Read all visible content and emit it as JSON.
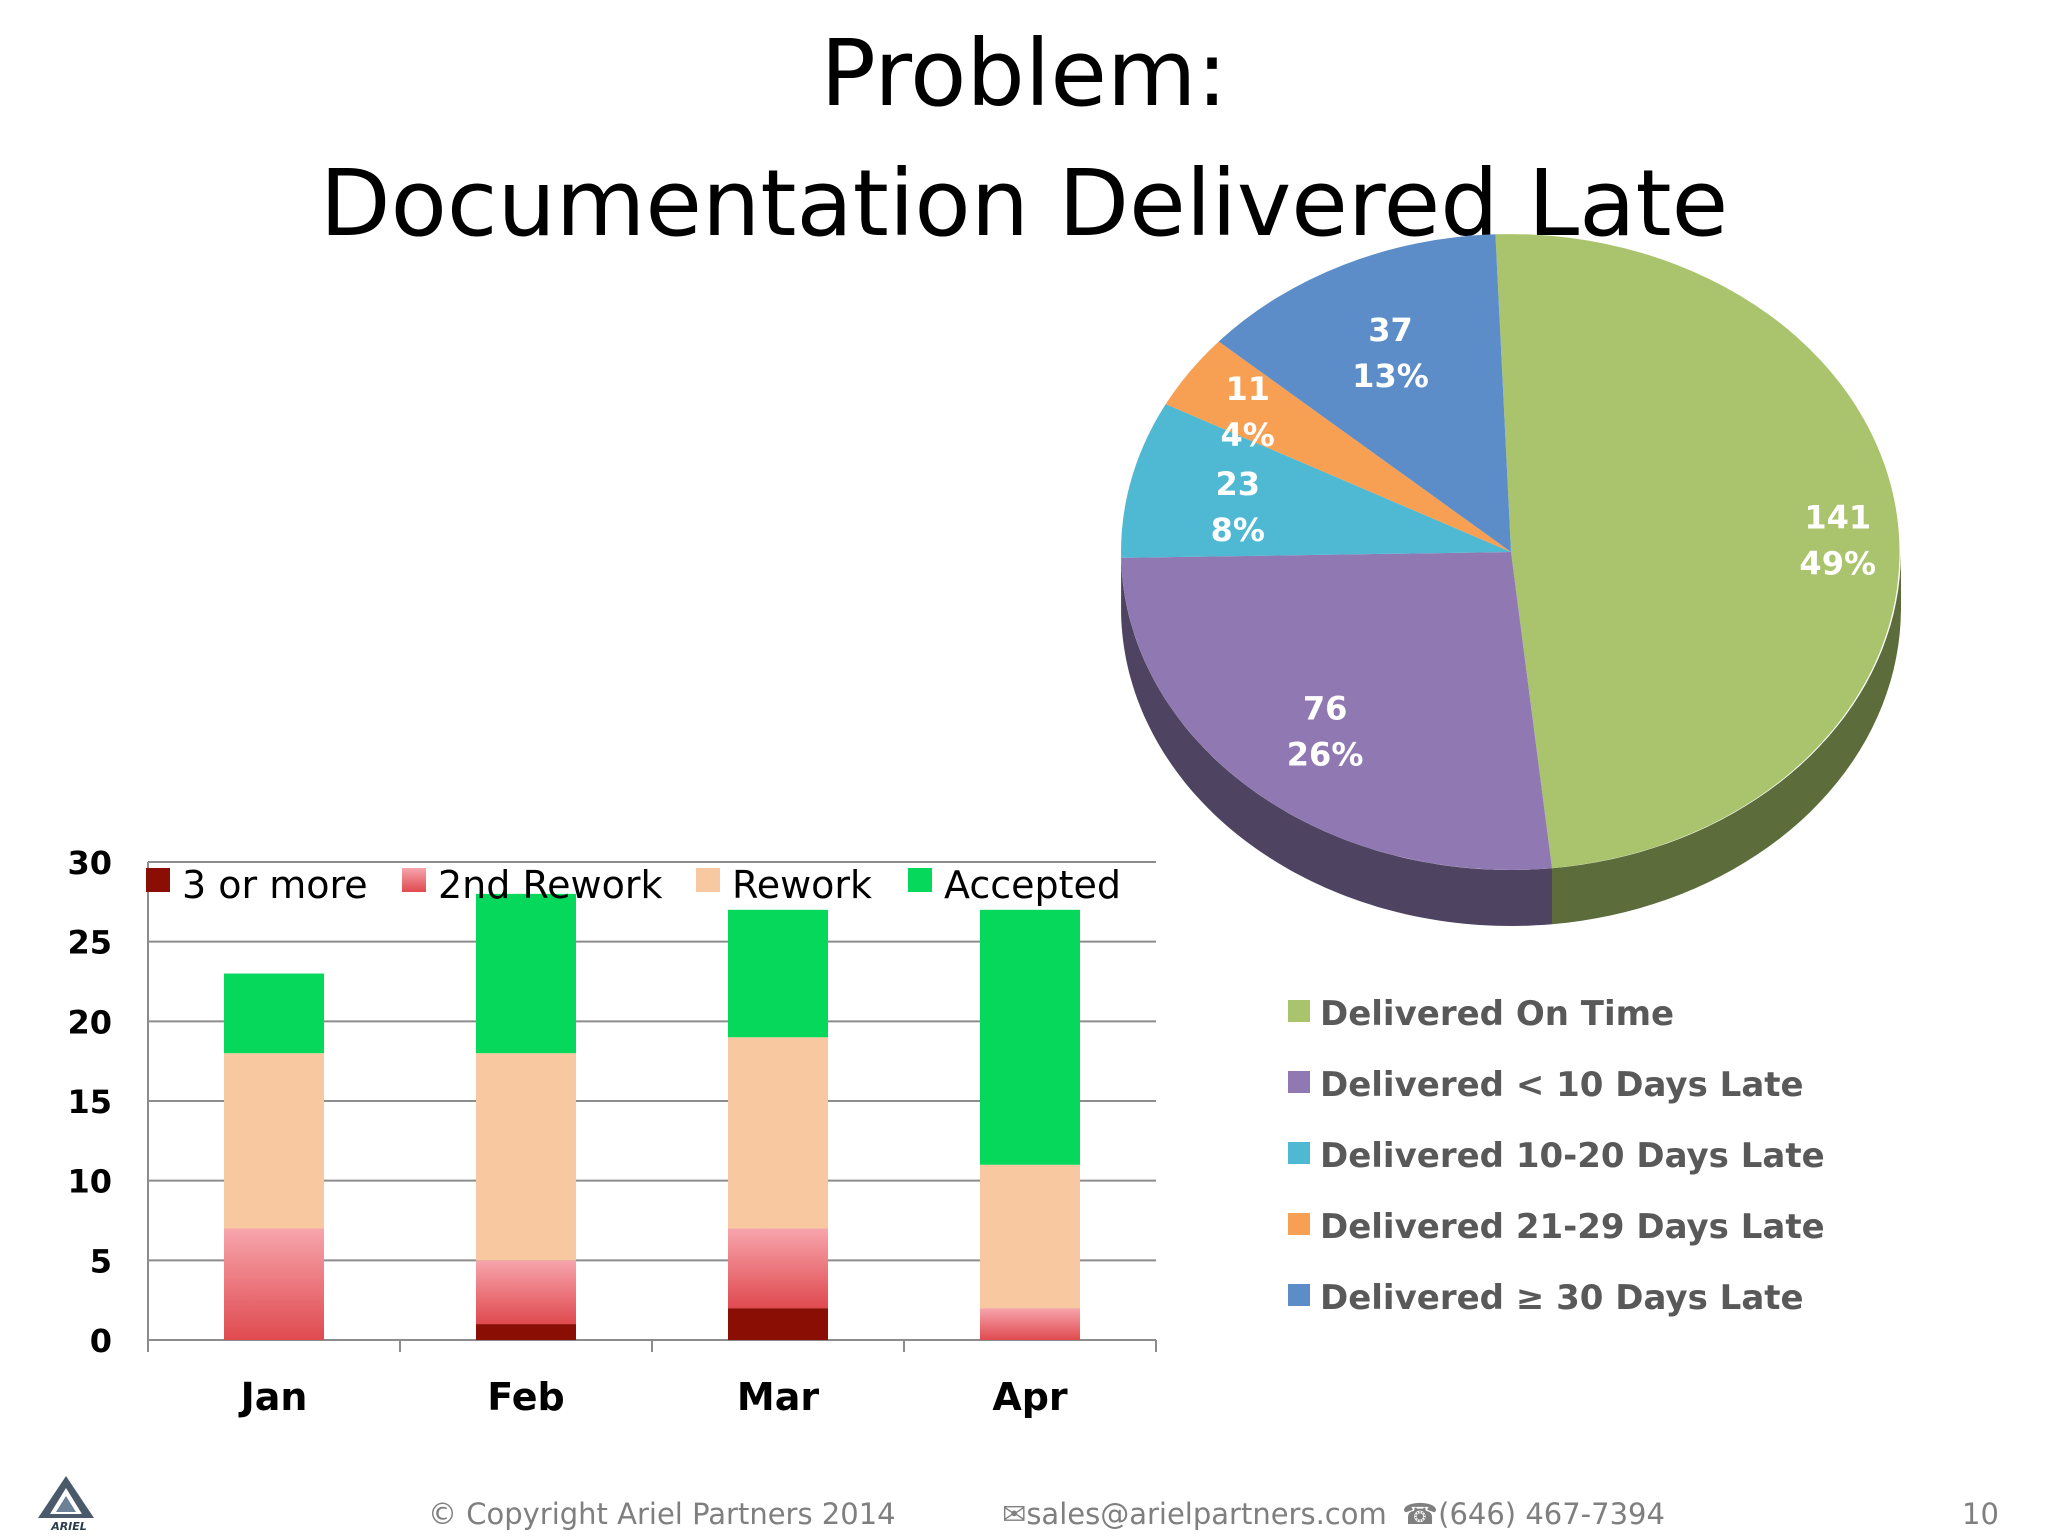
{
  "slide": {
    "title_line1": "Problem:",
    "title_line2": "Documentation Delivered Late",
    "footer": {
      "copyright": "© Copyright Ariel Partners 2014",
      "email": "sales@arielpartners.com",
      "phone": "(646) 467-7394",
      "page_number": "10"
    },
    "logo_text": "ARIEL"
  },
  "chart_data": [
    {
      "type": "bar",
      "stacked": true,
      "categories": [
        "Jan",
        "Feb",
        "Mar",
        "Apr"
      ],
      "series": [
        {
          "name": "3 or more",
          "color": "#8b0e04",
          "values": [
            0,
            1,
            2,
            0
          ]
        },
        {
          "name": "2nd Rework",
          "color": "#e8606a",
          "values": [
            7,
            4,
            5,
            2
          ]
        },
        {
          "name": "Rework",
          "color": "#f8c8a0",
          "values": [
            11,
            13,
            12,
            9
          ]
        },
        {
          "name": "Accepted",
          "color": "#05d85a",
          "values": [
            5,
            10,
            8,
            16
          ]
        }
      ],
      "ylim": [
        0,
        30
      ],
      "yticks": [
        0,
        5,
        10,
        15,
        20,
        25,
        30
      ],
      "grid": true,
      "legend": "top"
    },
    {
      "type": "pie",
      "slices": [
        {
          "name": "Delivered On Time",
          "value": 141,
          "percent": "49%",
          "color": "#a9c46c"
        },
        {
          "name": "Delivered < 10 Days Late",
          "value": 76,
          "percent": "26%",
          "color": "#9079b2"
        },
        {
          "name": "Delivered 10-20 Days Late",
          "value": 23,
          "percent": "8%",
          "color": "#4fb8d3"
        },
        {
          "name": "Delivered 21-29 Days Late",
          "value": 11,
          "percent": "4%",
          "color": "#f7a054"
        },
        {
          "name": "Delivered ≥ 30 Days Late",
          "value": 37,
          "percent": "13%",
          "color": "#5c8dc8"
        }
      ],
      "legend": "bottom"
    }
  ]
}
